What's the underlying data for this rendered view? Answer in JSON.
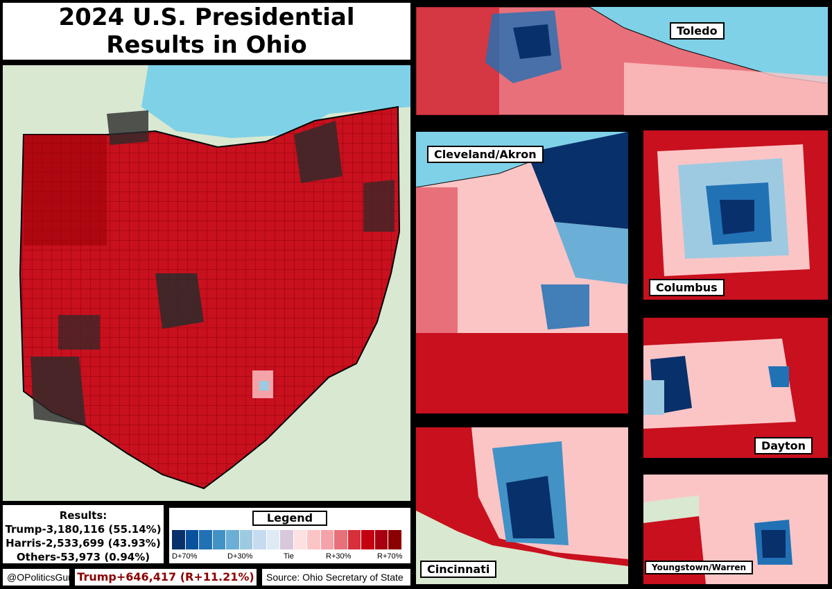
{
  "title": {
    "line1": "2024 U.S. Presidential",
    "line2": "Results in Ohio"
  },
  "inset_labels": {
    "toledo": "Toledo",
    "cleveland": "Cleveland/Akron",
    "columbus": "Columbus",
    "dayton": "Dayton",
    "cincinnati": "Cincinnati",
    "youngstown": "Youngstown/Warren"
  },
  "results": {
    "heading": "Results:",
    "trump": "Trump-3,180,116 (55.14%)",
    "harris": "Harris-2,533,699 (43.93%)",
    "others": "Others-53,973 (0.94%)"
  },
  "legend": {
    "title": "Legend",
    "colors": [
      "#08306b",
      "#08519c",
      "#2171b5",
      "#4292c6",
      "#6baed6",
      "#9ecae1",
      "#c6dbef",
      "#deebf7",
      "#d8c8dc",
      "#fde0e0",
      "#fcc5c5",
      "#f4a3a8",
      "#e8707a",
      "#d7303a",
      "#c40010",
      "#a80010",
      "#8b0000"
    ],
    "ticks": [
      "D+70%",
      "D+30%",
      "Tie",
      "R+30%",
      "R+70%"
    ]
  },
  "footer": {
    "handle": "@OPoliticsGuru",
    "margin": "Trump+646,417 (R+11.21%)",
    "source": "Source: Ohio Secretary of State"
  },
  "colors": {
    "water": "#7fd1e8",
    "land": "#d9e8d0",
    "safe_r": "#c8101e",
    "deep_r": "#8b0000",
    "lean_r": "#f4a3a8",
    "deep_d": "#0b3c8c",
    "lean_d": "#9ecae1",
    "urban": "#2a2a2a"
  }
}
